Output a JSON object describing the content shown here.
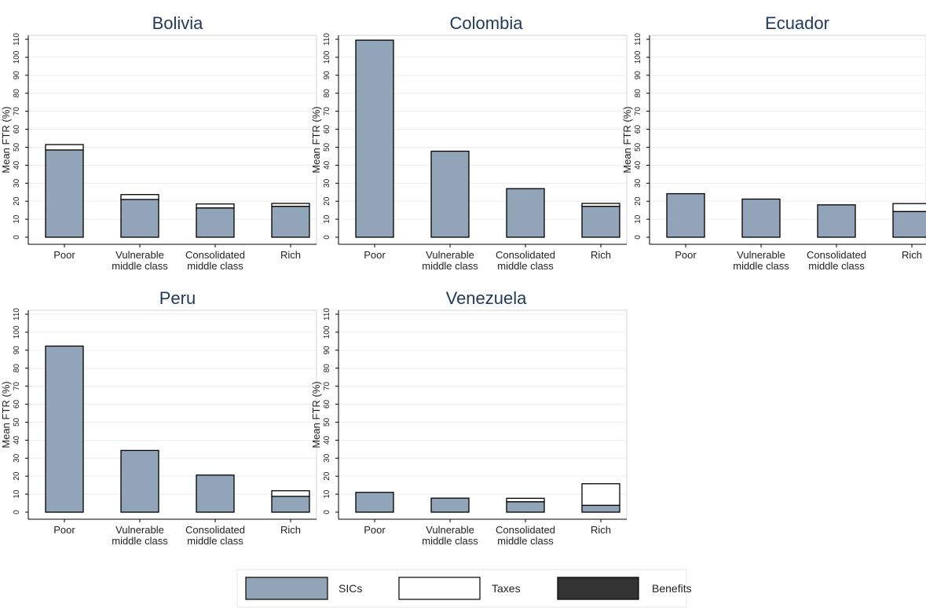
{
  "chart_data": [
    {
      "type": "bar",
      "stacked": true,
      "title": "Bolivia",
      "ylabel": "Mean FTR (%)",
      "ylim": [
        0,
        110
      ],
      "yticks": [
        0,
        10,
        20,
        30,
        40,
        50,
        60,
        70,
        80,
        90,
        100,
        110
      ],
      "grid": true,
      "categories": [
        [
          "Poor"
        ],
        [
          "Vulnerable",
          "middle class"
        ],
        [
          "Consolidated",
          "middle class"
        ],
        [
          "Rich"
        ]
      ],
      "series": [
        {
          "name": "SICs",
          "values": [
            48.5,
            21,
            16.3,
            17.2
          ]
        },
        {
          "name": "Taxes",
          "values": [
            3,
            2.7,
            2.2,
            1.6
          ]
        },
        {
          "name": "Benefits",
          "values": [
            0,
            0,
            0,
            0
          ]
        }
      ]
    },
    {
      "type": "bar",
      "stacked": true,
      "title": "Colombia",
      "ylabel": "Mean FTR (%)",
      "ylim": [
        0,
        110
      ],
      "yticks": [
        0,
        10,
        20,
        30,
        40,
        50,
        60,
        70,
        80,
        90,
        100,
        110
      ],
      "grid": true,
      "categories": [
        [
          "Poor"
        ],
        [
          "Vulnerable",
          "middle class"
        ],
        [
          "Consolidated",
          "middle class"
        ],
        [
          "Rich"
        ]
      ],
      "series": [
        {
          "name": "SICs",
          "values": [
            109.5,
            47.8,
            27,
            17.2
          ]
        },
        {
          "name": "Taxes",
          "values": [
            0,
            0,
            0,
            1.6
          ]
        },
        {
          "name": "Benefits",
          "values": [
            0,
            0,
            0,
            0
          ]
        }
      ]
    },
    {
      "type": "bar",
      "stacked": true,
      "title": "Ecuador",
      "ylabel": "Mean FTR (%)",
      "ylim": [
        0,
        110
      ],
      "yticks": [
        0,
        10,
        20,
        30,
        40,
        50,
        60,
        70,
        80,
        90,
        100,
        110
      ],
      "grid": true,
      "categories": [
        [
          "Poor"
        ],
        [
          "Vulnerable",
          "middle class"
        ],
        [
          "Consolidated",
          "middle class"
        ],
        [
          "Rich"
        ]
      ],
      "series": [
        {
          "name": "SICs",
          "values": [
            24.2,
            21.2,
            18,
            14.3
          ]
        },
        {
          "name": "Taxes",
          "values": [
            0,
            0,
            0,
            4.4
          ]
        },
        {
          "name": "Benefits",
          "values": [
            0,
            0,
            0,
            0
          ]
        }
      ]
    },
    {
      "type": "bar",
      "stacked": true,
      "title": "Peru",
      "ylabel": "Mean FTR (%)",
      "ylim": [
        0,
        110
      ],
      "yticks": [
        0,
        10,
        20,
        30,
        40,
        50,
        60,
        70,
        80,
        90,
        100,
        110
      ],
      "grid": true,
      "categories": [
        [
          "Poor"
        ],
        [
          "Vulnerable",
          "middle class"
        ],
        [
          "Consolidated",
          "middle class"
        ],
        [
          "Rich"
        ]
      ],
      "series": [
        {
          "name": "SICs",
          "values": [
            92.3,
            34.3,
            20.6,
            8.8
          ]
        },
        {
          "name": "Taxes",
          "values": [
            0,
            0,
            0,
            3.1
          ]
        },
        {
          "name": "Benefits",
          "values": [
            0,
            0,
            0,
            0
          ]
        }
      ]
    },
    {
      "type": "bar",
      "stacked": true,
      "title": "Venezuela",
      "ylabel": "Mean FTR (%)",
      "ylim": [
        0,
        110
      ],
      "yticks": [
        0,
        10,
        20,
        30,
        40,
        50,
        60,
        70,
        80,
        90,
        100,
        110
      ],
      "grid": true,
      "categories": [
        [
          "Poor"
        ],
        [
          "Vulnerable",
          "middle class"
        ],
        [
          "Consolidated",
          "middle class"
        ],
        [
          "Rich"
        ]
      ],
      "series": [
        {
          "name": "SICs",
          "values": [
            11,
            7.8,
            5.8,
            3.8
          ]
        },
        {
          "name": "Taxes",
          "values": [
            0,
            0,
            1.9,
            12
          ]
        },
        {
          "name": "Benefits",
          "values": [
            0,
            0,
            0,
            0
          ]
        }
      ]
    }
  ],
  "legend": {
    "placement": "bottom",
    "items": [
      {
        "label": "SICs",
        "color": "#92a5b8"
      },
      {
        "label": "Taxes",
        "color": "#ffffff"
      },
      {
        "label": "Benefits",
        "color": "#333333"
      }
    ]
  },
  "colors": {
    "SICs": "#92a5b8",
    "Taxes": "#ffffff",
    "Benefits": "#333333",
    "title": "#1f3a5a",
    "grid": "#e9eef1",
    "frame": "#d6d6d6"
  }
}
